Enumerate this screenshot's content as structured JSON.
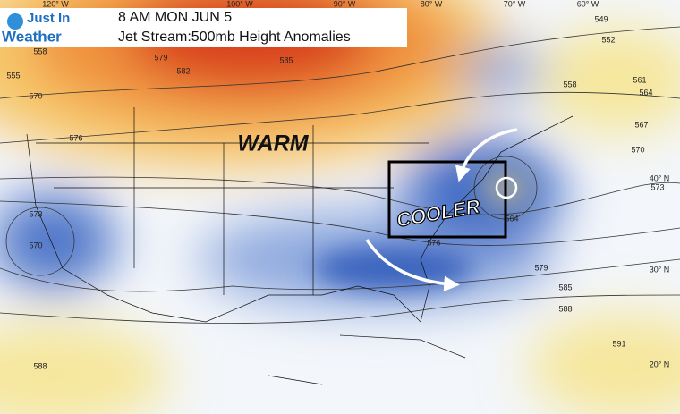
{
  "header": {
    "logo_line1": "Just In",
    "logo_line2": "Weather",
    "title": "8 AM MON JUN 5",
    "subtitle": "Jet Stream:500mb Height Anomalies"
  },
  "annotations": {
    "warm": "WARM",
    "cooler": "COOLER"
  },
  "longitude_labels": [
    "120° W",
    "100° W",
    "90° W",
    "80° W",
    "70° W",
    "60° W"
  ],
  "latitude_labels": [
    "40° N",
    "30° N",
    "20° N"
  ],
  "contour_labels": [
    555,
    558,
    570,
    579,
    582,
    585,
    576,
    573,
    570,
    588,
    564,
    576,
    579,
    585,
    588,
    591,
    549,
    552,
    558,
    561,
    564,
    567,
    570,
    573
  ]
}
